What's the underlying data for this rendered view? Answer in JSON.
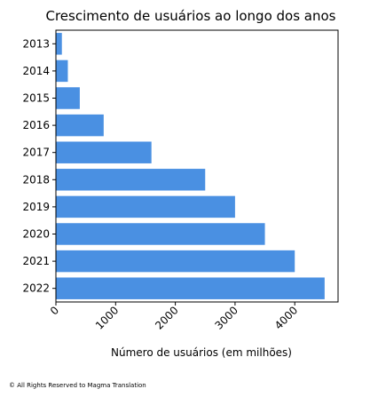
{
  "chart_data": {
    "type": "bar",
    "orientation": "horizontal",
    "title": "Crescimento de usuários ao longo dos anos",
    "xlabel": "Número de usuários (em milhões)",
    "ylabel": "",
    "categories": [
      "2013",
      "2014",
      "2015",
      "2016",
      "2017",
      "2018",
      "2019",
      "2020",
      "2021",
      "2022"
    ],
    "values": [
      100,
      200,
      400,
      800,
      1600,
      2500,
      3000,
      3500,
      4000,
      4500
    ],
    "xlim": [
      0,
      4725
    ],
    "xticks": [
      "0",
      "1000",
      "2000",
      "3000",
      "4000"
    ],
    "xtick_rotation": 45,
    "category_order": "top-to-bottom",
    "grid": false,
    "bar_color": "#4a90e2"
  },
  "footer": "© All Rights Reserved to Magma Translation"
}
